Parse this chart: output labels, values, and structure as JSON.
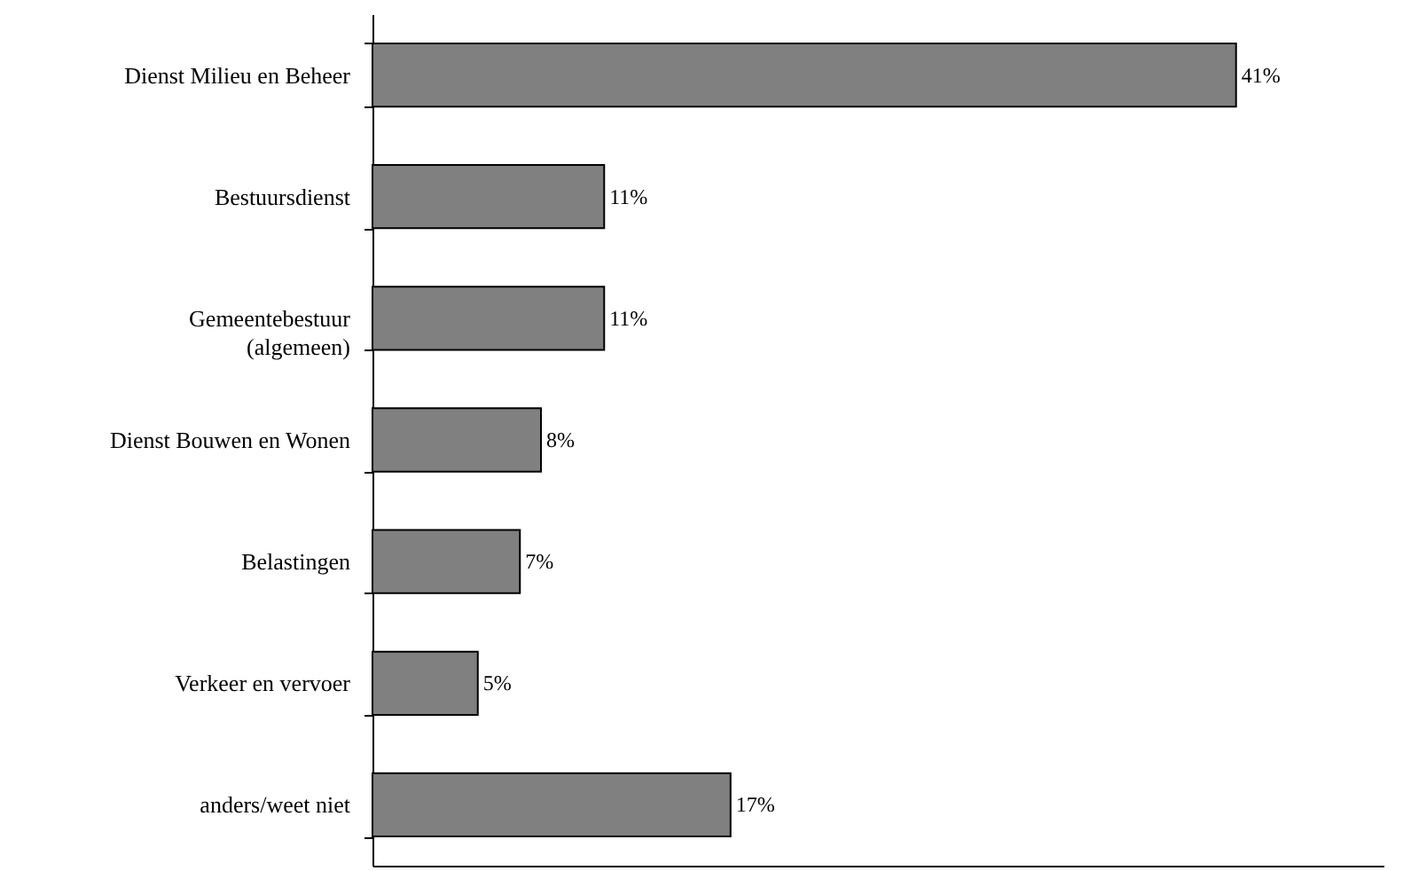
{
  "chart_data": {
    "type": "bar",
    "orientation": "horizontal",
    "categories": [
      "Dienst Milieu en Beheer",
      "Bestuursdienst",
      "Gemeentebestuur\n(algemeen)",
      "Dienst Bouwen en Wonen",
      "Belastingen",
      "Verkeer en vervoer",
      "anders/weet niet"
    ],
    "values": [
      41,
      11,
      11,
      8,
      7,
      5,
      17
    ],
    "value_labels": [
      "41%",
      "11%",
      "11%",
      "8%",
      "7%",
      "5%",
      "17%"
    ],
    "color": "#808080",
    "xlim": [
      0,
      48
    ],
    "tick_labels": "y"
  }
}
